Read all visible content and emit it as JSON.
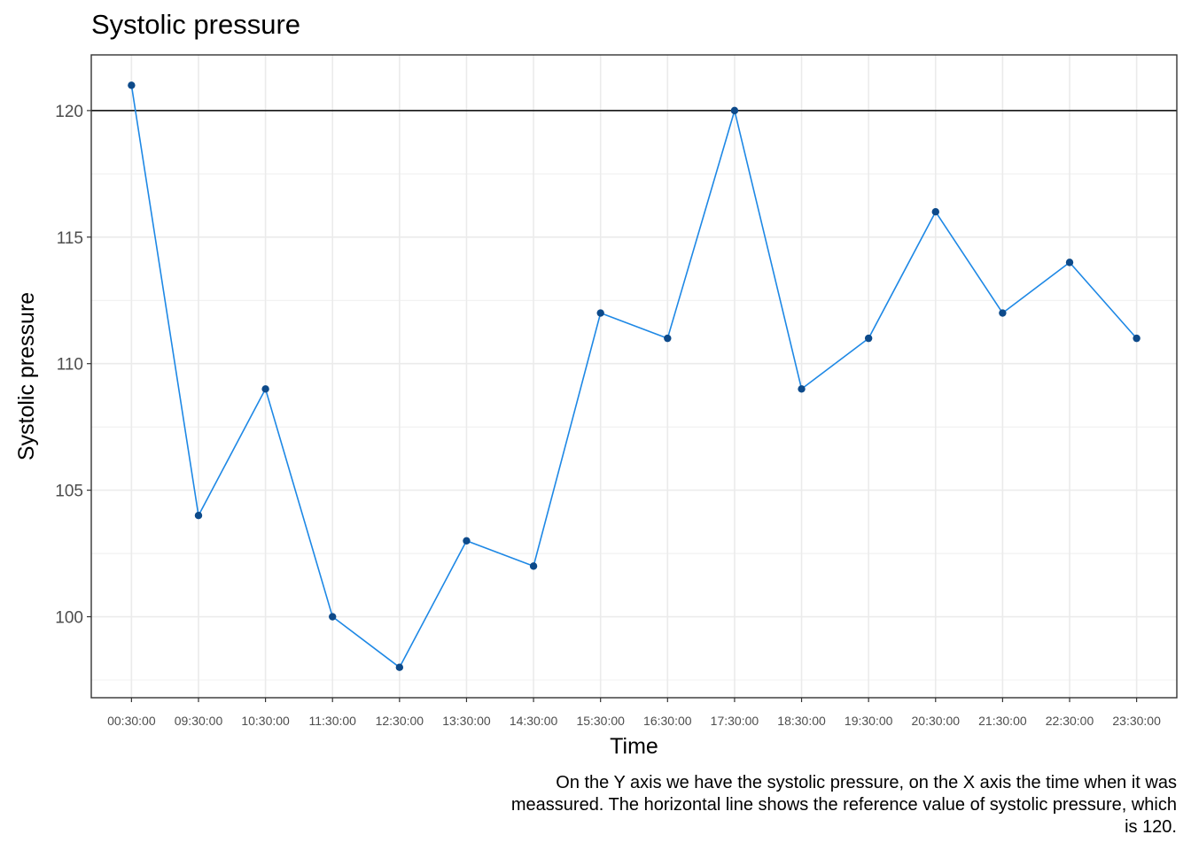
{
  "chart_data": {
    "type": "line",
    "title": "Systolic pressure",
    "xlabel": "Time",
    "ylabel": "Systolic pressure",
    "caption": "On the Y axis we have the systolic pressure, on the X axis the time when it was meassured. The horizontal line shows the reference value of systolic pressure, which is 120.",
    "categories": [
      "00:30:00",
      "09:30:00",
      "10:30:00",
      "11:30:00",
      "12:30:00",
      "13:30:00",
      "14:30:00",
      "15:30:00",
      "16:30:00",
      "17:30:00",
      "18:30:00",
      "19:30:00",
      "20:30:00",
      "21:30:00",
      "22:30:00",
      "23:30:00"
    ],
    "series": [
      {
        "values": [
          121,
          104,
          109,
          100,
          98,
          103,
          102,
          112,
          111,
          120,
          109,
          111,
          116,
          112,
          114,
          111
        ]
      }
    ],
    "reference_line": {
      "y": 120
    },
    "yticks": [
      100,
      105,
      110,
      115,
      120
    ],
    "ylim": [
      96.8,
      122.2
    ],
    "grid": true,
    "colors": {
      "line": "#1e88e5",
      "point": "#0d4a8a",
      "reference": "#000000",
      "grid": "#ebebeb"
    }
  }
}
